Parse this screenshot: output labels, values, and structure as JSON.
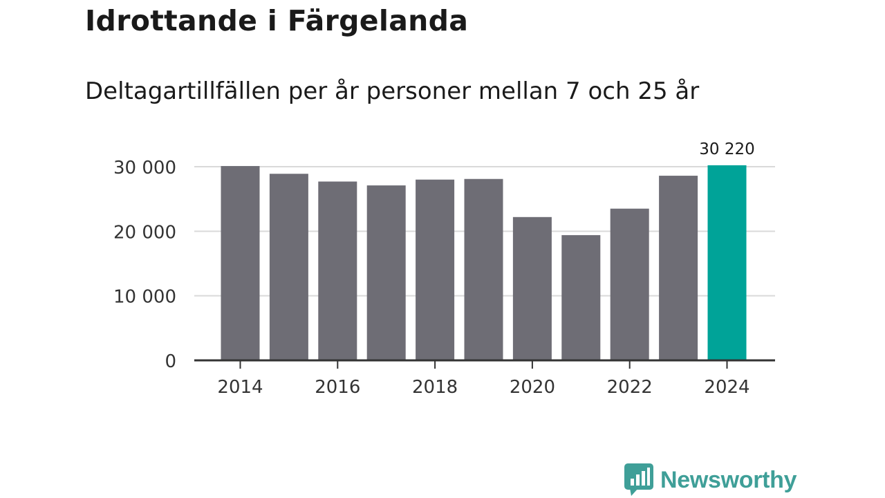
{
  "title": "Idrottande i Färgelanda",
  "subtitle": "Deltagartillfällen per år personer mellan 7 och 25 år",
  "brand": {
    "name": "Newsworthy",
    "icon": "bar-chart-speech-bubble-icon"
  },
  "colors": {
    "bar": "#6e6d75",
    "highlight": "#00a398",
    "grid": "#d9d9d9",
    "axis": "#333333",
    "brand": "#3f9f98"
  },
  "chart_data": {
    "type": "bar",
    "title": "Idrottande i Färgelanda",
    "subtitle": "Deltagartillfällen per år personer mellan 7 och 25 år",
    "xlabel": "",
    "ylabel": "",
    "categories": [
      "2014",
      "2015",
      "2016",
      "2017",
      "2018",
      "2019",
      "2020",
      "2021",
      "2022",
      "2023",
      "2024"
    ],
    "values": [
      30100,
      28900,
      27700,
      27100,
      28000,
      28100,
      22200,
      19400,
      23500,
      28600,
      30220
    ],
    "highlight_index": 10,
    "ylim": [
      0,
      30000
    ],
    "yticks": [
      0,
      10000,
      20000,
      30000
    ],
    "ytick_labels": [
      "0",
      "10 000",
      "20 000",
      "30 000"
    ],
    "xtick_labels": [
      "2014",
      "2016",
      "2018",
      "2020",
      "2022",
      "2024"
    ],
    "data_label": {
      "index": 10,
      "text": "30 220"
    },
    "grid": true
  }
}
